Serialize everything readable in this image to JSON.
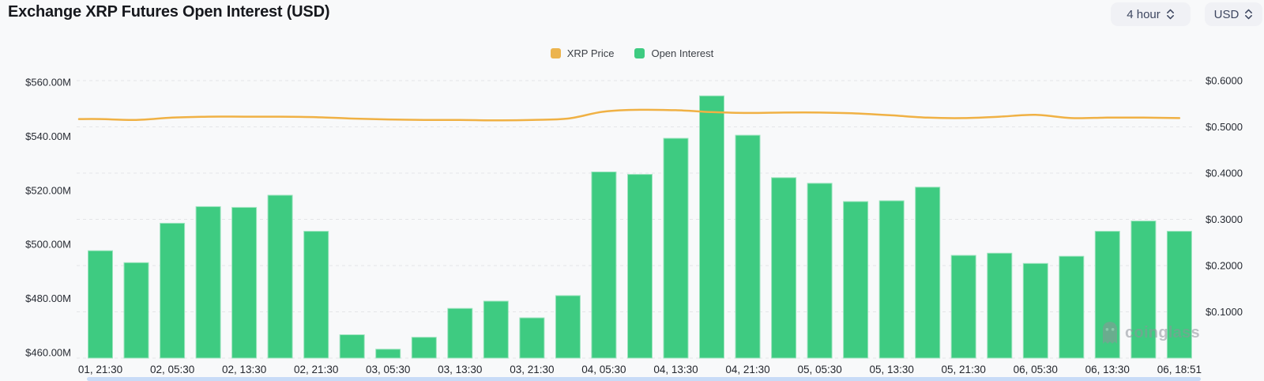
{
  "header": {
    "title": "Exchange XRP Futures Open Interest (USD)",
    "interval_select": {
      "value": "4 hour"
    },
    "currency_select": {
      "value": "USD"
    }
  },
  "legend": {
    "items": [
      {
        "label": "XRP Price",
        "color": "#ECB44D",
        "series": "line"
      },
      {
        "label": "Open Interest",
        "color": "#3ECB81",
        "series": "bar"
      }
    ]
  },
  "watermark": {
    "text": "coinglass"
  },
  "chart_data": {
    "type": "bar+line",
    "title": "Exchange XRP Futures Open Interest (USD)",
    "grid": "horizontal-dashed",
    "legend_position": "top-center",
    "x_tick_labels": [
      "01, 21:30",
      "02, 05:30",
      "02, 13:30",
      "02, 21:30",
      "03, 05:30",
      "03, 13:30",
      "03, 21:30",
      "04, 05:30",
      "04, 13:30",
      "04, 21:30",
      "05, 05:30",
      "05, 13:30",
      "05, 21:30",
      "06, 05:30",
      "06, 13:30",
      "06, 18:51"
    ],
    "x_tick_every": 2,
    "bar_count": 31,
    "series": [
      {
        "name": "Open Interest",
        "type": "bar",
        "axis": "left",
        "unit": "USD millions",
        "color": "#3ECB81",
        "values": [
          498.7,
          494.4,
          508.6,
          514.6,
          514.3,
          518.7,
          505.7,
          468.4,
          463.2,
          467.5,
          477.9,
          480.5,
          474.5,
          482.5,
          527.1,
          526.2,
          539.2,
          554.5,
          540.3,
          525.0,
          523.0,
          516.4,
          516.7,
          521.6,
          497.0,
          497.8,
          494.1,
          496.7,
          505.7,
          509.4,
          505.7
        ]
      },
      {
        "name": "XRP Price",
        "type": "line",
        "axis": "right",
        "unit": "USD",
        "color": "#F0B144",
        "values": [
          0.517,
          0.515,
          0.52,
          0.522,
          0.522,
          0.522,
          0.521,
          0.518,
          0.516,
          0.515,
          0.515,
          0.514,
          0.515,
          0.518,
          0.533,
          0.537,
          0.536,
          0.532,
          0.53,
          0.531,
          0.531,
          0.529,
          0.525,
          0.52,
          0.519,
          0.522,
          0.526,
          0.519,
          0.52,
          0.52,
          0.519
        ]
      }
    ],
    "left_axis": {
      "tick_labels": [
        "$560.00M",
        "$540.00M",
        "$520.00M",
        "$500.00M",
        "$480.00M",
        "$460.00M"
      ],
      "tick_values": [
        560,
        540,
        520,
        500,
        480,
        460
      ],
      "min": 460,
      "max": 560
    },
    "right_axis": {
      "tick_labels": [
        "$0.6000",
        "$0.5000",
        "$0.4000",
        "$0.3000",
        "$0.2000",
        "$0.1000"
      ],
      "tick_values": [
        0.6,
        0.5,
        0.4,
        0.3,
        0.2,
        0.1
      ],
      "min": 0,
      "max": 0.6
    }
  }
}
